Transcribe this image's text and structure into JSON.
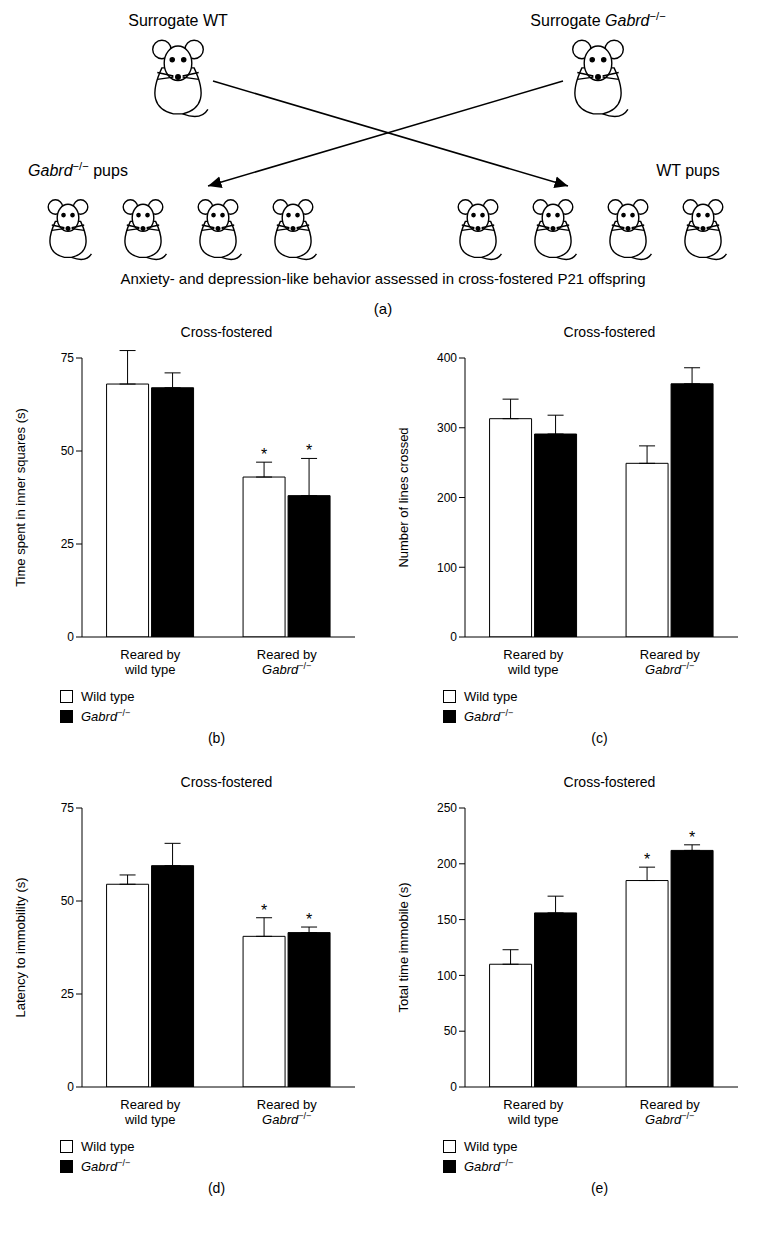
{
  "diagram": {
    "panel": "(a)",
    "nodes": [
      {
        "label": "Surrogate WT"
      },
      {
        "label": "Surrogate Gabrd−/−"
      },
      {
        "label": "Gabrd−/− pups"
      },
      {
        "label": "WT pups"
      }
    ],
    "caption": "Anxiety- and depression-like behavior assessed in cross-fostered P21 offspring"
  },
  "chart_data": [
    {
      "type": "bar",
      "panel": "(b)",
      "title": "Cross-fostered",
      "y_label": "Time spent in inner squares (s)",
      "categories": [
        "Reared by wild type",
        "Reared by Gabrd−/−"
      ],
      "series": [
        {
          "name": "Wild type",
          "color": "#ffffff",
          "values": [
            68,
            43
          ],
          "errors": [
            9,
            4
          ],
          "annotations": [
            null,
            "*"
          ]
        },
        {
          "name": "Gabrd−/−",
          "color": "#000000",
          "values": [
            67,
            38
          ],
          "errors": [
            4,
            10
          ],
          "annotations": [
            null,
            "*"
          ]
        }
      ],
      "ylim": [
        0,
        75
      ],
      "yticks": [
        0,
        25,
        50,
        75
      ],
      "legend": "bottom"
    },
    {
      "type": "bar",
      "panel": "(c)",
      "title": "Cross-fostered",
      "y_label": "Number of lines crossed",
      "categories": [
        "Reared by wild type",
        "Reared by Gabrd−/−"
      ],
      "series": [
        {
          "name": "Wild type",
          "color": "#ffffff",
          "values": [
            313,
            249
          ],
          "errors": [
            28,
            25
          ],
          "annotations": [
            null,
            null
          ]
        },
        {
          "name": "Gabrd−/−",
          "color": "#000000",
          "values": [
            291,
            363
          ],
          "errors": [
            27,
            23
          ],
          "annotations": [
            null,
            null
          ]
        }
      ],
      "ylim": [
        0,
        400
      ],
      "yticks": [
        0,
        100,
        200,
        300,
        400
      ],
      "legend": "bottom"
    },
    {
      "type": "bar",
      "panel": "(d)",
      "title": "Cross-fostered",
      "y_label": "Latency to immobility (s)",
      "categories": [
        "Reared by wild type",
        "Reared by Gabrd−/−"
      ],
      "series": [
        {
          "name": "Wild type",
          "color": "#ffffff",
          "values": [
            54.5,
            40.5
          ],
          "errors": [
            2.5,
            5
          ],
          "annotations": [
            null,
            "*"
          ]
        },
        {
          "name": "Gabrd−/−",
          "color": "#000000",
          "values": [
            59.5,
            41.5
          ],
          "errors": [
            6,
            1.5
          ],
          "annotations": [
            null,
            "*"
          ]
        }
      ],
      "ylim": [
        0,
        75
      ],
      "yticks": [
        0,
        25,
        50,
        75
      ],
      "legend": "bottom"
    },
    {
      "type": "bar",
      "panel": "(e)",
      "title": "Cross-fostered",
      "y_label": "Total time immobile (s)",
      "categories": [
        "Reared by wild type",
        "Reared by Gabrd−/−"
      ],
      "series": [
        {
          "name": "Wild type",
          "color": "#ffffff",
          "values": [
            110,
            185
          ],
          "errors": [
            13,
            12
          ],
          "annotations": [
            null,
            "*"
          ]
        },
        {
          "name": "Gabrd−/−",
          "color": "#000000",
          "values": [
            156,
            212
          ],
          "errors": [
            15,
            5
          ],
          "annotations": [
            null,
            "*"
          ]
        }
      ],
      "ylim": [
        0,
        250
      ],
      "yticks": [
        0,
        50,
        100,
        150,
        200,
        250
      ],
      "legend": "bottom"
    }
  ]
}
